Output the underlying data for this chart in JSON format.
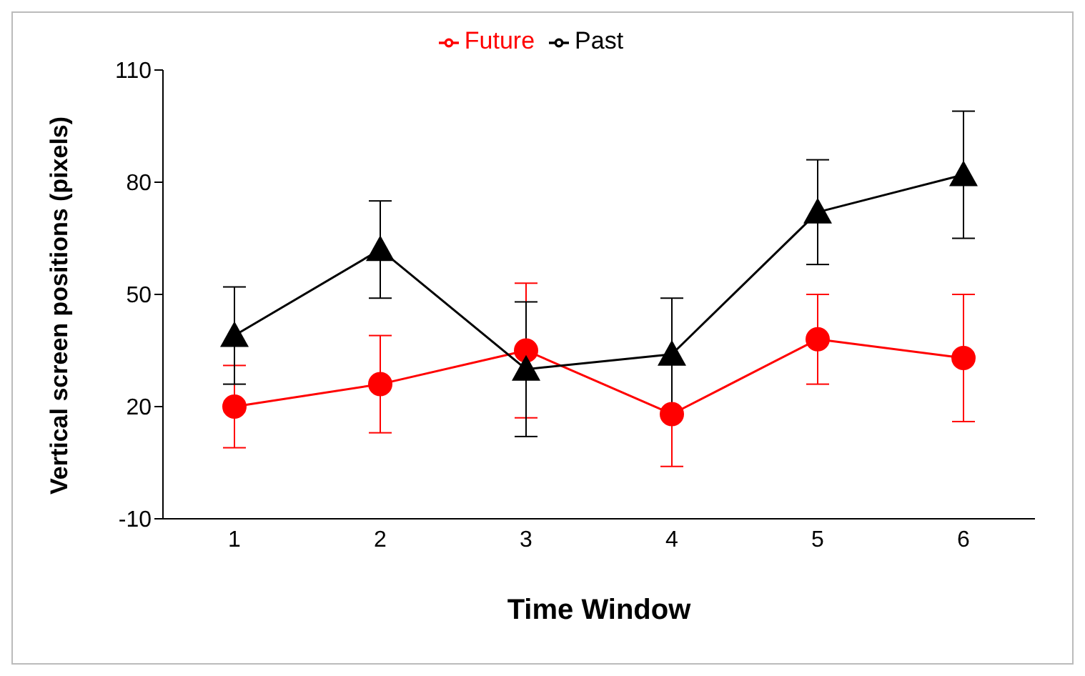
{
  "chart_data": {
    "type": "line",
    "xlabel": "Time Window",
    "ylabel": "Vertical screen positions (pixels)",
    "categories": [
      "1",
      "2",
      "3",
      "4",
      "5",
      "6"
    ],
    "series": [
      {
        "name": "Future",
        "color": "#ff0000",
        "marker": "circle",
        "values": [
          20,
          26,
          35,
          18,
          38,
          33
        ],
        "errors": [
          11,
          13,
          18,
          14,
          12,
          17
        ]
      },
      {
        "name": "Past",
        "color": "#000000",
        "marker": "triangle",
        "values": [
          39,
          62,
          30,
          34,
          72,
          82
        ],
        "errors": [
          13,
          13,
          18,
          15,
          14,
          17
        ]
      }
    ],
    "ylim": [
      -10,
      110
    ],
    "yticks": [
      -10,
      20,
      50,
      80,
      110
    ],
    "grid": false,
    "legend": "top"
  }
}
